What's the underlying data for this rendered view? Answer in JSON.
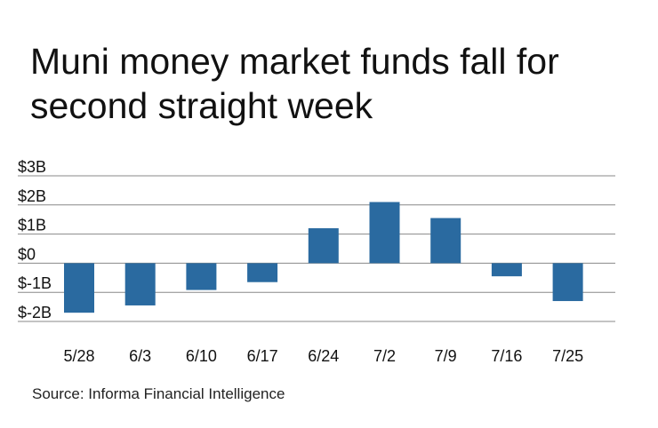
{
  "title_line1": "Muni money market funds fall for",
  "title_line2": "second straight week",
  "source": "Source: Informa Financial Intelligence",
  "colors": {
    "bar": "#2a6aa0",
    "grid": "#888888",
    "text": "#111111"
  },
  "chart_data": {
    "type": "bar",
    "categories": [
      "5/28",
      "6/3",
      "6/10",
      "6/17",
      "6/24",
      "7/2",
      "7/9",
      "7/16",
      "7/25"
    ],
    "values": [
      -1.7,
      -1.45,
      -0.92,
      -0.65,
      1.2,
      2.1,
      1.55,
      -0.45,
      -1.3
    ],
    "yticks": [
      3,
      2,
      1,
      0,
      -1,
      -2
    ],
    "ytick_labels": [
      "$3B",
      "$2B",
      "$1B",
      "$0",
      "$-1B",
      "$-2B"
    ],
    "ylim": [
      -2,
      3
    ],
    "ylabel": "",
    "xlabel": "",
    "grid": true
  }
}
